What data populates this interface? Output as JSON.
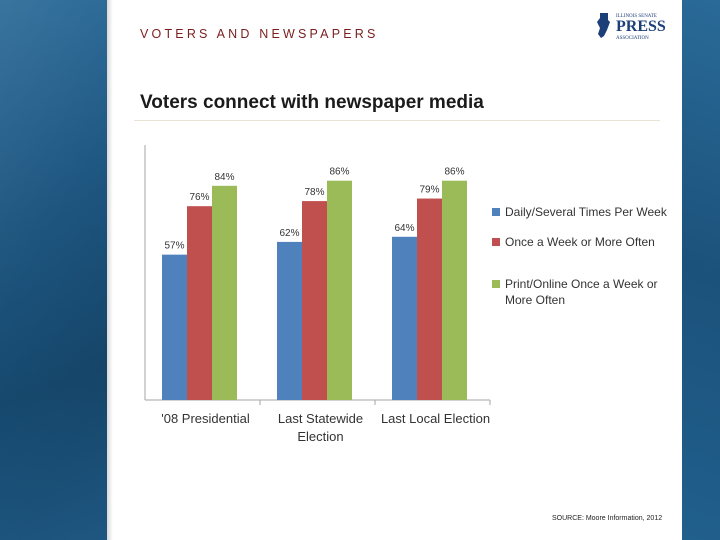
{
  "header": {
    "kicker": "VOTERS AND NEWSPAPERS",
    "title": "Voters connect with newspaper media",
    "source": "SOURCE: Moore Information, 2012"
  },
  "logo": {
    "line1": "ILLINOIS SENATE",
    "word": "PRESS",
    "line3": "ASSOCIATION",
    "color": "#1c3f78"
  },
  "chart_data": {
    "type": "bar",
    "categories": [
      "'08 Presidential",
      "Last Statewide Election",
      "Last Local Election"
    ],
    "category_lines": [
      [
        "'08 Presidential"
      ],
      [
        "Last Statewide",
        "Election"
      ],
      [
        "Last Local Election"
      ]
    ],
    "series": [
      {
        "name": "Daily/Several Times Per Week",
        "values": [
          57,
          62,
          64
        ],
        "labels": [
          "57%",
          "62%",
          "64%"
        ],
        "color": "#4f81bd"
      },
      {
        "name": "Once a Week or More Often",
        "values": [
          76,
          78,
          79
        ],
        "labels": [
          "76%",
          "78%",
          "79%"
        ],
        "color": "#c0504d"
      },
      {
        "name": "Print/Online Once a Week or More Often",
        "values": [
          84,
          86,
          86
        ],
        "labels": [
          "84%",
          "86%",
          "86%"
        ],
        "color": "#9bbb59"
      }
    ],
    "ylim": [
      0,
      100
    ],
    "grid": false,
    "legend": "right"
  }
}
